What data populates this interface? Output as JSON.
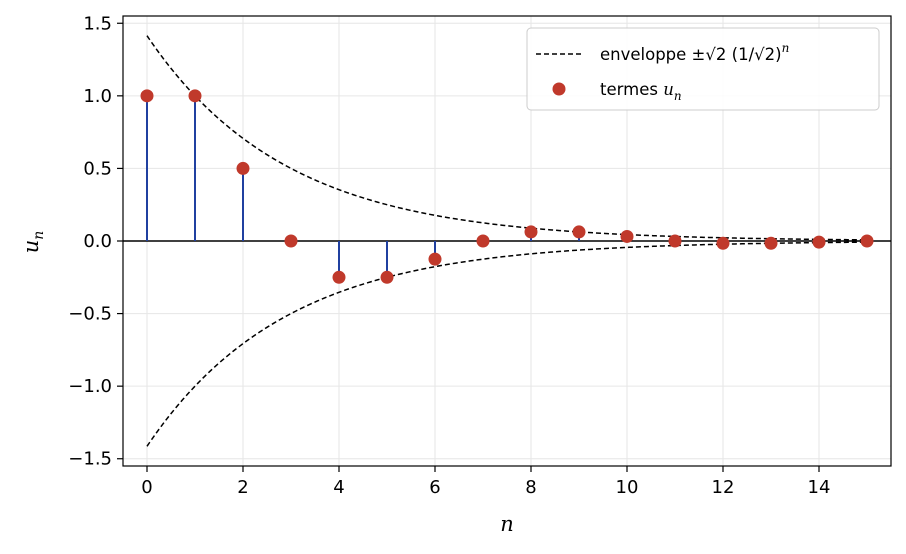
{
  "chart_data": {
    "type": "scatter",
    "subtype": "stem",
    "xlabel": "n",
    "ylabel": "u_n",
    "xlim": [
      -0.5,
      15.5
    ],
    "ylim": [
      -1.55,
      1.55
    ],
    "x_ticks": [
      0,
      2,
      4,
      6,
      8,
      10,
      12,
      14
    ],
    "y_ticks": [
      -1.5,
      -1.0,
      -0.5,
      0.0,
      0.5,
      1.0,
      1.5
    ],
    "x_tick_labels": [
      "0",
      "2",
      "4",
      "6",
      "8",
      "10",
      "12",
      "14"
    ],
    "y_tick_labels": [
      "−1.5",
      "−1.0",
      "−0.5",
      "0.0",
      "0.5",
      "1.0",
      "1.5"
    ],
    "grid": true,
    "legend_position": "top-right",
    "series": [
      {
        "name": "termes u_n",
        "kind": "stem",
        "color": "#c0392b",
        "stem_color": "#2040a0",
        "x": [
          0,
          1,
          2,
          3,
          4,
          5,
          6,
          7,
          8,
          9,
          10,
          11,
          12,
          13,
          14,
          15
        ],
        "y": [
          1,
          1,
          0.5,
          0,
          -0.25,
          -0.25,
          -0.125,
          0,
          0.0625,
          0.0625,
          0.03125,
          0,
          -0.015625,
          -0.015625,
          -0.0078125,
          0
        ]
      },
      {
        "name": "enveloppe ±√2 (1/√2)^n",
        "kind": "line",
        "style": "dashed",
        "color": "#000000",
        "x_range": [
          0,
          15
        ],
        "formula": "±sqrt(2)*(1/sqrt(2))^n"
      }
    ],
    "legend": [
      {
        "label_text": "enveloppe ±",
        "label_math": "√2 (1/√2)",
        "label_sup": "n",
        "marker": "dashed-line"
      },
      {
        "label_text": "termes ",
        "label_math": "u",
        "label_sub": "n",
        "marker": "circle"
      }
    ]
  }
}
